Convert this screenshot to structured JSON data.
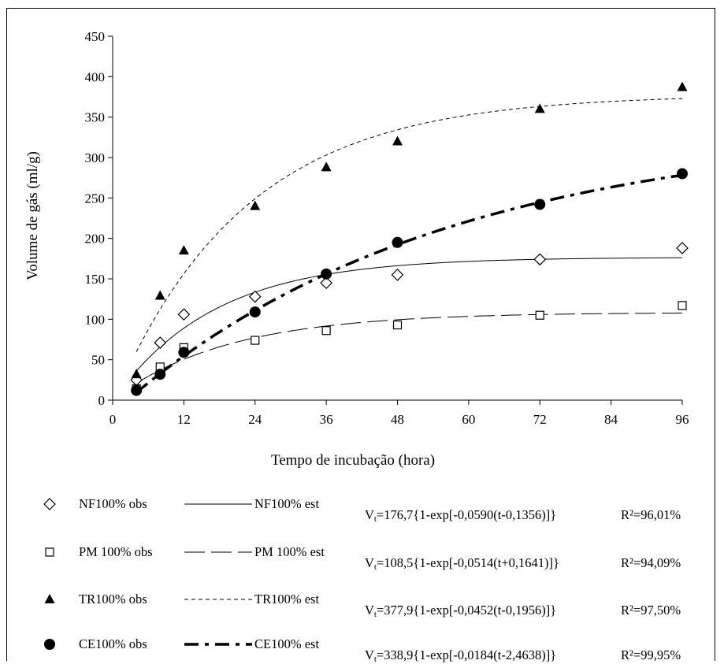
{
  "chart_data": {
    "type": "scatter",
    "xlabel": "Tempo de incubação (hora)",
    "ylabel": "Volume de gás (ml/g)",
    "xlim": [
      0,
      96
    ],
    "ylim": [
      0,
      450
    ],
    "xticks": [
      0,
      12,
      24,
      36,
      48,
      60,
      72,
      84,
      96
    ],
    "yticks": [
      0,
      50,
      100,
      150,
      200,
      250,
      300,
      350,
      400,
      450
    ],
    "grid": false,
    "legend_position": "bottom",
    "x": [
      4,
      8,
      12,
      24,
      36,
      48,
      72,
      96
    ],
    "series": [
      {
        "key": "NF",
        "obs_name": "NF100% obs",
        "est_name": "NF100% est",
        "marker": "diamond-open",
        "line_style": "solid-thin",
        "obs_values": [
          25,
          71,
          106,
          128,
          145,
          155,
          174,
          188
        ],
        "params": {
          "a": 176.7,
          "c": 0.059,
          "L": 0.1356
        },
        "equation": {
          "prefix": "V",
          "sub": "t",
          "rest": "=176,7{1-exp[-0,0590(t-0,1356)]}"
        },
        "r2": "R²=96,01%"
      },
      {
        "key": "PM",
        "obs_name": "PM 100% obs",
        "est_name": "PM 100% est",
        "marker": "square-open",
        "line_style": "long-dash-thin",
        "obs_values": [
          14,
          41,
          65,
          74,
          86,
          93,
          105,
          117
        ],
        "params": {
          "a": 108.5,
          "c": 0.0514,
          "L": -0.1641
        },
        "equation": {
          "prefix": "V",
          "sub": "t",
          "rest": "=108,5{1-exp[-0,0514(t+0,1641)]}"
        },
        "r2": "R²=94,09%"
      },
      {
        "key": "TR",
        "obs_name": "TR100% obs",
        "est_name": "TR100% est",
        "marker": "triangle-filled",
        "line_style": "short-dash-thin",
        "obs_values": [
          32,
          129,
          185,
          240,
          288,
          320,
          360,
          387
        ],
        "params": {
          "a": 377.9,
          "c": 0.0452,
          "L": 0.1956
        },
        "equation": {
          "prefix": "V",
          "sub": "t",
          "rest": "=377,9{1-exp[-0,0452(t-0,1956)]}"
        },
        "r2": "R²=97,50%"
      },
      {
        "key": "CE",
        "obs_name": "CE100% obs",
        "est_name": "CE100% est",
        "marker": "circle-filled",
        "line_style": "dash-dot-thick",
        "obs_values": [
          12,
          32,
          59,
          109,
          156,
          195,
          242,
          280
        ],
        "params": {
          "a": 338.9,
          "c": 0.0184,
          "L": 2.4638
        },
        "equation": {
          "prefix": "V",
          "sub": "t",
          "rest": "=338,9{1-exp[-0,0184(t-2,4638)]}"
        },
        "r2": "R²=99,95%"
      }
    ]
  }
}
